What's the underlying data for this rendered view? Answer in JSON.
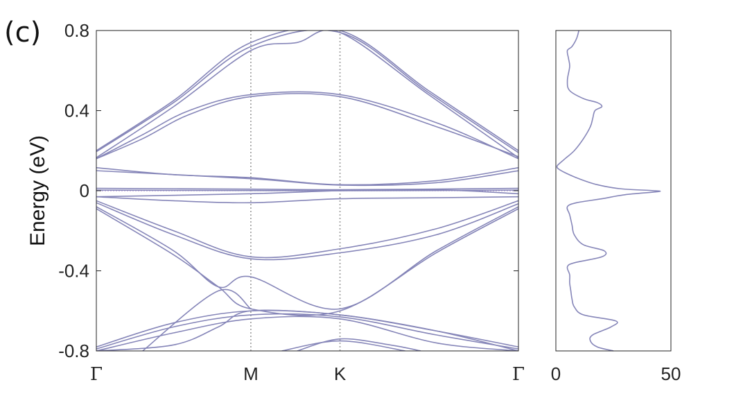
{
  "panel_label": "(c)",
  "chart_data": [
    {
      "type": "line",
      "name": "band-structure",
      "ylabel": "Energy (eV)",
      "ylim": [
        -0.8,
        0.8
      ],
      "yticks": [
        {
          "value": 0.8,
          "label": "0.8"
        },
        {
          "value": 0.4,
          "label": "0.4"
        },
        {
          "value": 0,
          "label": "0"
        },
        {
          "value": -0.4,
          "label": "-0.4"
        },
        {
          "value": -0.8,
          "label": "-0.8"
        }
      ],
      "kpath": [
        {
          "label": "Γ",
          "pos": 0
        },
        {
          "label": "M",
          "pos": 1
        },
        {
          "label": "K",
          "pos": 1.577
        },
        {
          "label": "Γ",
          "pos": 2.732
        }
      ],
      "grid": "vertical dotted lines at M and K",
      "line_color": "#8585b8",
      "bands": [
        [
          [
            0,
            0.2
          ],
          [
            0.5,
            0.45
          ],
          [
            1,
            0.74
          ],
          [
            1.577,
            0.8
          ],
          [
            2.15,
            0.5
          ],
          [
            2.732,
            0.2
          ]
        ],
        [
          [
            0,
            0.195
          ],
          [
            0.5,
            0.44
          ],
          [
            1,
            0.72
          ],
          [
            1.577,
            0.79
          ],
          [
            2.15,
            0.49
          ],
          [
            2.732,
            0.19
          ]
        ],
        [
          [
            0,
            0.165
          ],
          [
            0.5,
            0.42
          ],
          [
            1,
            0.7
          ],
          [
            1.3,
            0.74
          ],
          [
            1.577,
            0.79
          ],
          [
            2.15,
            0.48
          ],
          [
            2.732,
            0.165
          ]
        ],
        [
          [
            0,
            0.16
          ],
          [
            0.3,
            0.28
          ],
          [
            0.6,
            0.4
          ],
          [
            1,
            0.48
          ],
          [
            1.577,
            0.48
          ],
          [
            2.2,
            0.34
          ],
          [
            2.732,
            0.16
          ]
        ],
        [
          [
            0,
            0.16
          ],
          [
            0.3,
            0.26
          ],
          [
            0.6,
            0.38
          ],
          [
            1,
            0.47
          ],
          [
            1.577,
            0.47
          ],
          [
            2.2,
            0.32
          ],
          [
            2.732,
            0.17
          ]
        ],
        [
          [
            0,
            0.115
          ],
          [
            0.5,
            0.08
          ],
          [
            1,
            0.065
          ],
          [
            1.577,
            0.03
          ],
          [
            2.2,
            0.05
          ],
          [
            2.732,
            0.115
          ]
        ],
        [
          [
            0,
            0.1
          ],
          [
            1,
            0.06
          ],
          [
            1.577,
            0.028
          ],
          [
            2.2,
            0.04
          ],
          [
            2.732,
            0.1
          ]
        ],
        [
          [
            0,
            0.012
          ],
          [
            1,
            0.008
          ],
          [
            1.577,
            0.005
          ],
          [
            2.732,
            0.012
          ]
        ],
        [
          [
            0,
            0.003
          ],
          [
            1,
            0.001
          ],
          [
            1.577,
            0.0
          ],
          [
            2.732,
            0.003
          ]
        ],
        [
          [
            0,
            -0.03
          ],
          [
            1,
            -0.015
          ],
          [
            1.577,
            0.0
          ],
          [
            2.2,
            0.005
          ],
          [
            2.732,
            -0.015
          ]
        ],
        [
          [
            0,
            -0.03
          ],
          [
            0.5,
            -0.05
          ],
          [
            1,
            -0.06
          ],
          [
            1.577,
            -0.04
          ],
          [
            2.2,
            -0.035
          ],
          [
            2.732,
            -0.03
          ]
        ],
        [
          [
            0,
            -0.05
          ],
          [
            0.5,
            -0.2
          ],
          [
            1,
            -0.33
          ],
          [
            1.577,
            -0.29
          ],
          [
            2.2,
            -0.19
          ],
          [
            2.732,
            -0.05
          ]
        ],
        [
          [
            0,
            -0.06
          ],
          [
            0.5,
            -0.22
          ],
          [
            1,
            -0.34
          ],
          [
            1.577,
            -0.31
          ],
          [
            2.2,
            -0.22
          ],
          [
            2.732,
            -0.065
          ]
        ],
        [
          [
            0,
            -0.08
          ],
          [
            0.5,
            -0.3
          ],
          [
            0.79,
            -0.48
          ],
          [
            1,
            -0.43
          ],
          [
            1.577,
            -0.59
          ],
          [
            2.2,
            -0.3
          ],
          [
            2.732,
            -0.08
          ]
        ],
        [
          [
            0,
            -0.09
          ],
          [
            0.5,
            -0.32
          ],
          [
            0.79,
            -0.48
          ],
          [
            1,
            -0.59
          ],
          [
            1.577,
            -0.6
          ],
          [
            2.2,
            -0.31
          ],
          [
            2.732,
            -0.09
          ]
        ],
        [
          [
            0,
            -0.78
          ],
          [
            0.5,
            -0.66
          ],
          [
            1,
            -0.6
          ],
          [
            1.577,
            -0.62
          ],
          [
            2.2,
            -0.7
          ],
          [
            2.732,
            -0.78
          ]
        ],
        [
          [
            0,
            -0.79
          ],
          [
            0.5,
            -0.68
          ],
          [
            1,
            -0.62
          ],
          [
            1.577,
            -0.63
          ],
          [
            2.2,
            -0.72
          ],
          [
            2.732,
            -0.79
          ]
        ],
        [
          [
            0,
            -0.8
          ],
          [
            0.5,
            -0.71
          ],
          [
            1,
            -0.64
          ],
          [
            1.577,
            -0.64
          ],
          [
            2.2,
            -0.76
          ],
          [
            2.732,
            -0.8
          ]
        ],
        [
          [
            0,
            -0.8
          ],
          [
            0.5,
            -0.77
          ],
          [
            0.79,
            -0.68
          ],
          [
            1,
            -0.6
          ],
          [
            1.577,
            -0.62
          ],
          [
            2.2,
            -0.7
          ],
          [
            2.732,
            -0.8
          ]
        ],
        [
          [
            0.3,
            -0.8
          ],
          [
            0.79,
            -0.5
          ],
          [
            1,
            -0.59
          ]
        ],
        [
          [
            1.3,
            -0.8
          ],
          [
            1.577,
            -0.74
          ],
          [
            1.9,
            -0.77
          ],
          [
            2.1,
            -0.8
          ]
        ],
        [
          [
            1.2,
            -0.8
          ],
          [
            1.577,
            -0.75
          ],
          [
            2.0,
            -0.8
          ]
        ]
      ]
    },
    {
      "type": "line",
      "name": "density-of-states",
      "xlim": [
        0,
        50
      ],
      "xticks": [
        {
          "value": 0,
          "label": "0"
        },
        {
          "value": 50,
          "label": "50"
        }
      ],
      "ylim": [
        -0.8,
        0.8
      ],
      "line_color": "#8585b8",
      "points": [
        [
          -0.8,
          25
        ],
        [
          -0.78,
          18
        ],
        [
          -0.75,
          15
        ],
        [
          -0.72,
          16
        ],
        [
          -0.68,
          24
        ],
        [
          -0.65,
          26
        ],
        [
          -0.62,
          12
        ],
        [
          -0.58,
          8
        ],
        [
          -0.54,
          7
        ],
        [
          -0.5,
          6.5
        ],
        [
          -0.46,
          6
        ],
        [
          -0.42,
          6
        ],
        [
          -0.38,
          5
        ],
        [
          -0.36,
          8
        ],
        [
          -0.33,
          20
        ],
        [
          -0.3,
          21
        ],
        [
          -0.27,
          12
        ],
        [
          -0.22,
          8
        ],
        [
          -0.17,
          7
        ],
        [
          -0.12,
          6
        ],
        [
          -0.08,
          5
        ],
        [
          -0.06,
          9
        ],
        [
          -0.04,
          20
        ],
        [
          -0.02,
          30
        ],
        [
          -0.005,
          44
        ],
        [
          0.0,
          43
        ],
        [
          0.01,
          28
        ],
        [
          0.03,
          18
        ],
        [
          0.06,
          10
        ],
        [
          0.09,
          4
        ],
        [
          0.11,
          1
        ],
        [
          0.12,
          0.5
        ],
        [
          0.13,
          1
        ],
        [
          0.16,
          4
        ],
        [
          0.2,
          8
        ],
        [
          0.26,
          12
        ],
        [
          0.32,
          15
        ],
        [
          0.36,
          16
        ],
        [
          0.4,
          17
        ],
        [
          0.42,
          20
        ],
        [
          0.44,
          18
        ],
        [
          0.46,
          12
        ],
        [
          0.5,
          6
        ],
        [
          0.55,
          5
        ],
        [
          0.62,
          6
        ],
        [
          0.66,
          5.5
        ],
        [
          0.7,
          5
        ],
        [
          0.72,
          7
        ],
        [
          0.76,
          9
        ],
        [
          0.8,
          10
        ]
      ]
    }
  ]
}
